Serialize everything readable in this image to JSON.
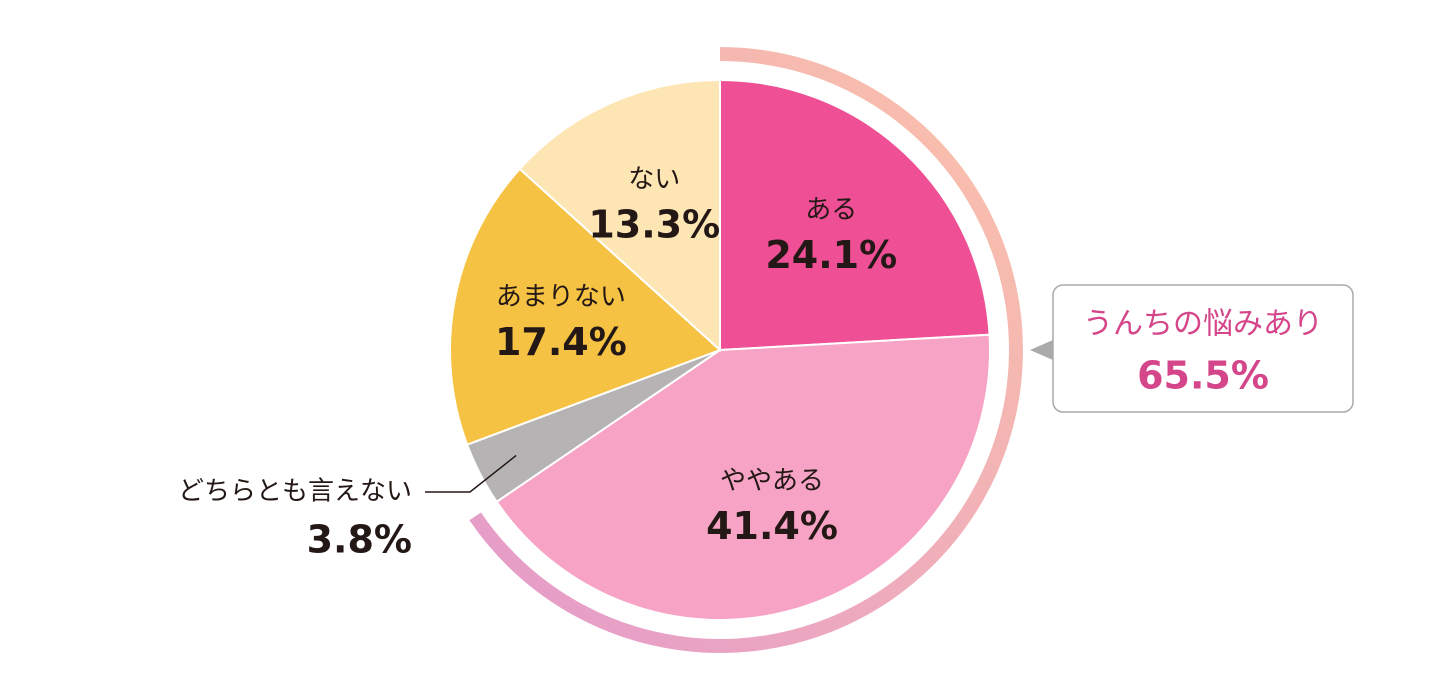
{
  "chart_data": {
    "type": "pie",
    "categories": [
      "ある",
      "ややある",
      "どちらとも言えない",
      "あまりない",
      "ない"
    ],
    "values": [
      24.1,
      41.4,
      3.8,
      17.4,
      13.3
    ],
    "value_labels": [
      "24.1%",
      "41.4%",
      "3.8%",
      "17.4%",
      "13.3%"
    ],
    "colors": [
      "#ee4f95",
      "#f7a3c5",
      "#b5b3b3",
      "#f6c244",
      "#fde6b4"
    ],
    "callout": {
      "label": "うんちの悩みあり",
      "value": 65.5,
      "value_label": "65.5%",
      "color": "#d4458a"
    }
  }
}
